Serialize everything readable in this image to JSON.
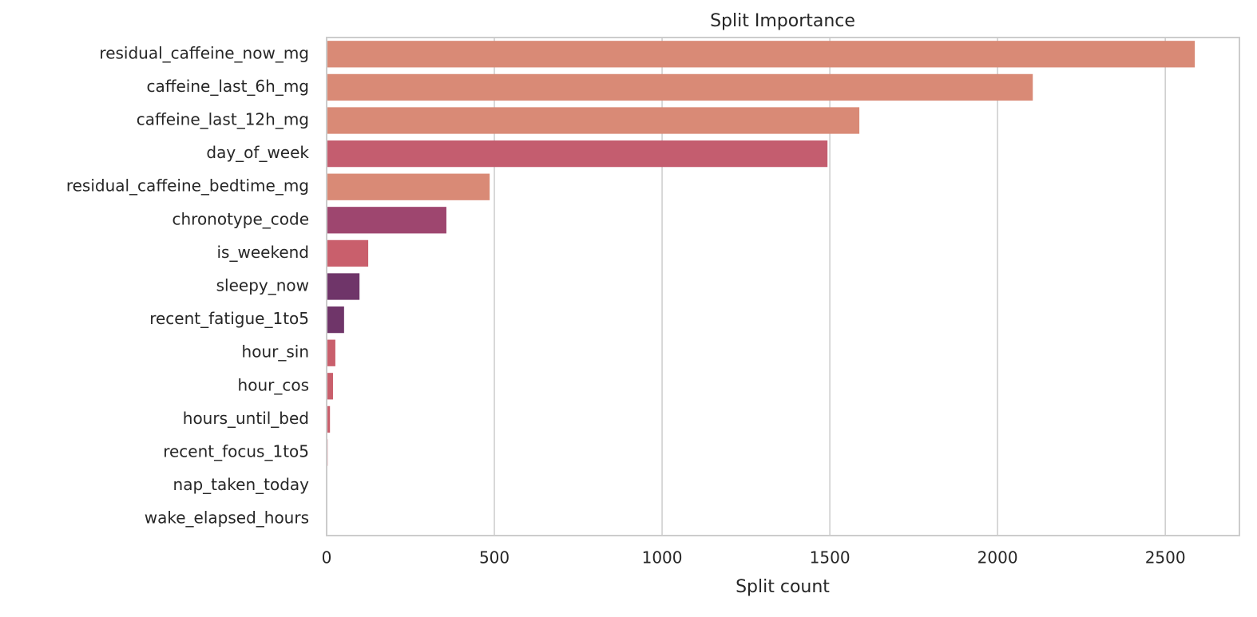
{
  "chart_data": {
    "type": "barh",
    "title": "Split Importance",
    "x_label": "Split count",
    "categories": [
      "residual_caffeine_now_mg",
      "caffeine_last_6h_mg",
      "caffeine_last_12h_mg",
      "day_of_week",
      "residual_caffeine_bedtime_mg",
      "chronotype_code",
      "is_weekend",
      "sleepy_now",
      "recent_fatigue_1to5",
      "hour_sin",
      "hour_cos",
      "hours_until_bed",
      "recent_focus_1to5",
      "nap_taken_today",
      "wake_elapsed_hours"
    ],
    "values": [
      2588,
      2105,
      1588,
      1493,
      486,
      357,
      124,
      98,
      52,
      26,
      19,
      10,
      3,
      0,
      0
    ],
    "colors": [
      "#d98a76",
      "#d98a76",
      "#d98a76",
      "#c45d6f",
      "#d98a76",
      "#9e466f",
      "#c95f6c",
      "#6f3569",
      "#6f3569",
      "#c95f6c",
      "#c95f6c",
      "#c95f6c",
      "#c95f6c",
      "#c95f6c",
      "#c95f6c"
    ],
    "xlim": [
      0,
      2721
    ],
    "xticks": [
      0,
      500,
      1000,
      1500,
      2000,
      2500
    ],
    "grid": true
  }
}
